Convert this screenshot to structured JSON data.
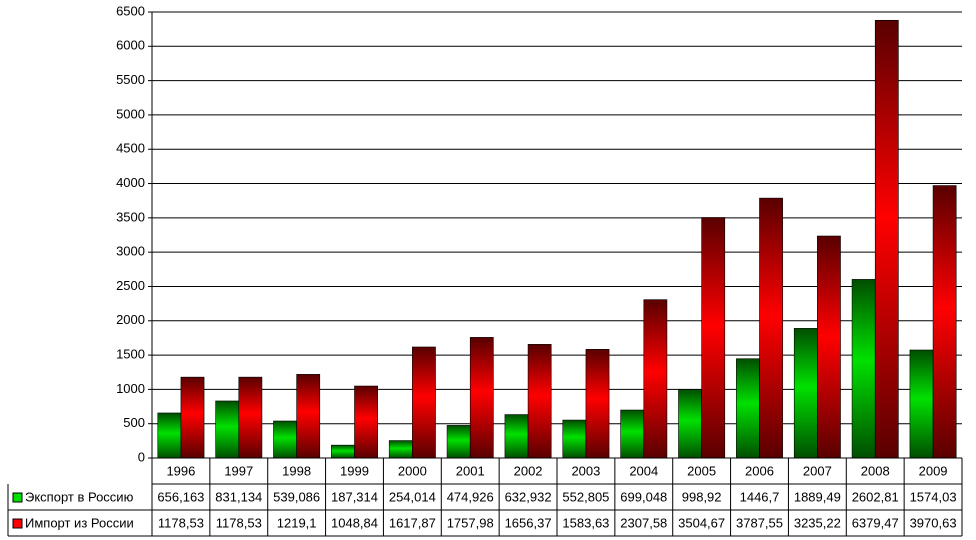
{
  "chart_data": {
    "type": "bar",
    "categories": [
      "1996",
      "1997",
      "1998",
      "1999",
      "2000",
      "2001",
      "2002",
      "2003",
      "2004",
      "2005",
      "2006",
      "2007",
      "2008",
      "2009"
    ],
    "series": [
      {
        "name": "Экспорт в Россию",
        "color": "#00e000",
        "values": [
          656.163,
          831.134,
          539.086,
          187.314,
          254.014,
          474.926,
          632.932,
          552.805,
          699.048,
          998.92,
          1446.7,
          1889.49,
          2602.81,
          1574.03
        ],
        "value_labels": [
          "656,163",
          "831,134",
          "539,086",
          "187,314",
          "254,014",
          "474,926",
          "632,932",
          "552,805",
          "699,048",
          "998,92",
          "1446,7",
          "1889,49",
          "2602,81",
          "1574,03"
        ]
      },
      {
        "name": "Импорт из России",
        "color": "#ff0000",
        "values": [
          1178.53,
          1178.53,
          1219.1,
          1048.84,
          1617.87,
          1757.98,
          1656.37,
          1583.63,
          2307.58,
          3504.67,
          3787.55,
          3235.22,
          6379.47,
          3970.63
        ],
        "value_labels": [
          "1178,53",
          "1178,53",
          "1219,1",
          "1048,84",
          "1617,87",
          "1757,98",
          "1656,37",
          "1583,63",
          "2307,58",
          "3504,67",
          "3787,55",
          "3235,22",
          "6379,47",
          "3970,63"
        ]
      }
    ],
    "ylim": [
      0,
      6500
    ],
    "yticks": [
      0,
      500,
      1000,
      1500,
      2000,
      2500,
      3000,
      3500,
      4000,
      4500,
      5000,
      5500,
      6000,
      6500
    ],
    "grid": true
  }
}
